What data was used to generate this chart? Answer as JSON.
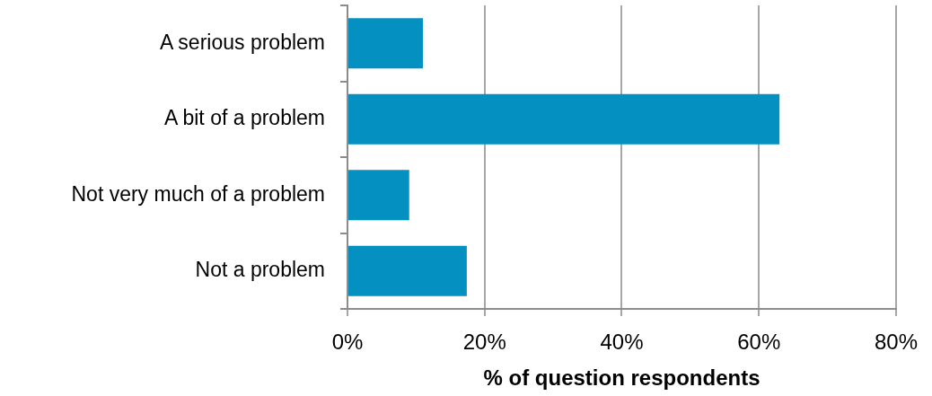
{
  "chart_data": {
    "type": "bar",
    "orientation": "horizontal",
    "categories": [
      "A serious problem",
      "A bit of a problem",
      "Not very much of a problem",
      "Not a problem"
    ],
    "values": [
      11,
      63,
      9,
      17.4
    ],
    "color": "#0491c1",
    "xlabel": "% of question respondents",
    "xlim": [
      0,
      80
    ],
    "xticks": [
      {
        "value": 0,
        "label": "0%"
      },
      {
        "value": 20,
        "label": "20%"
      },
      {
        "value": 40,
        "label": "40%"
      },
      {
        "value": 60,
        "label": "60%"
      },
      {
        "value": 80,
        "label": "80%"
      }
    ],
    "grid": "x"
  }
}
